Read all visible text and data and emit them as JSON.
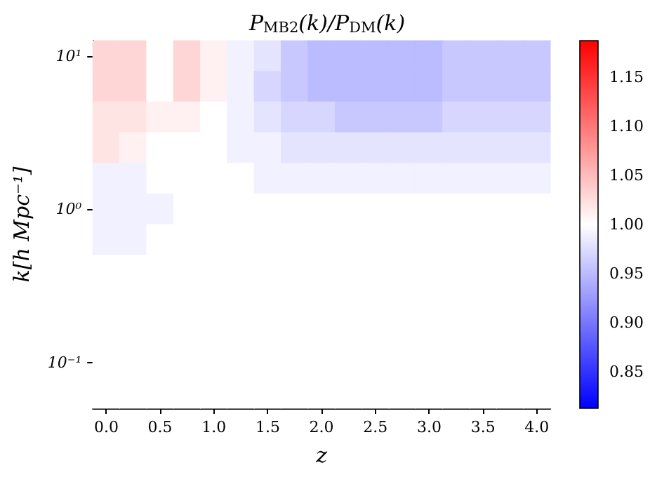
{
  "chart_data": {
    "type": "heatmap",
    "title": "P$_{MB2}$(k)/P$_{DM}$(k)",
    "xlabel": "z",
    "ylabel": "k[h Mpc⁻¹]",
    "categories": [
      "0.0",
      null,
      "0.5",
      null,
      "1.0",
      null,
      "1.5",
      null,
      "2.0",
      null,
      "2.5",
      null,
      "3.0",
      null,
      "3.5",
      null,
      "4.0"
    ],
    "y_categories": [
      "10¹",
      null,
      null,
      null,
      null,
      "10⁰",
      null,
      null,
      null,
      null,
      "10⁻¹",
      null
    ],
    "clim": [
      0.813,
      1.187
    ],
    "cticks": [
      0.85,
      {
        "value": 0.9,
        "label": "0.90"
      },
      0.95,
      {
        "value": 1.0,
        "label": "1.00"
      },
      1.05,
      {
        "value": 1.1,
        "label": "1.10"
      },
      1.15
    ],
    "cells": [
      [
        1.03,
        1.03,
        1.0,
        1.03,
        1.01,
        0.99,
        0.98,
        0.96,
        0.95,
        0.95,
        0.95,
        0.95,
        0.95,
        0.96,
        0.96,
        0.96,
        0.96
      ],
      [
        1.03,
        1.03,
        1.0,
        1.03,
        1.01,
        0.99,
        0.97,
        0.96,
        0.95,
        0.95,
        0.95,
        0.95,
        0.95,
        0.96,
        0.96,
        0.96,
        0.96
      ],
      [
        1.02,
        1.02,
        1.01,
        1.01,
        1.0,
        0.99,
        0.98,
        0.97,
        0.97,
        0.96,
        0.96,
        0.96,
        0.96,
        0.97,
        0.97,
        0.97,
        0.97
      ],
      [
        1.02,
        1.01,
        1.0,
        1.0,
        1.0,
        0.99,
        0.99,
        0.98,
        0.98,
        0.98,
        0.98,
        0.98,
        0.98,
        0.98,
        0.98,
        0.98,
        0.98
      ],
      [
        0.99,
        0.99,
        1.0,
        1.0,
        1.0,
        1.0,
        0.99,
        0.99,
        0.99,
        0.99,
        0.99,
        0.99,
        0.99,
        0.99,
        0.99,
        0.99,
        0.99
      ],
      [
        0.99,
        0.99,
        0.99,
        1.0,
        1.0,
        1.0,
        1.0,
        1.0,
        1.0,
        1.0,
        1.0,
        1.0,
        1.0,
        1.0,
        1.0,
        1.0,
        1.0
      ],
      [
        0.99,
        0.99,
        1.0,
        1.0,
        1.0,
        1.0,
        1.0,
        1.0,
        1.0,
        1.0,
        1.0,
        1.0,
        1.0,
        1.0,
        1.0,
        1.0,
        1.0
      ],
      [
        1.0,
        1.0,
        1.0,
        1.0,
        1.0,
        1.0,
        1.0,
        1.0,
        1.0,
        1.0,
        1.0,
        1.0,
        1.0,
        1.0,
        1.0,
        1.0,
        1.0
      ],
      [
        1.0,
        1.0,
        1.0,
        1.0,
        1.0,
        1.0,
        1.0,
        1.0,
        1.0,
        1.0,
        1.0,
        1.0,
        1.0,
        1.0,
        1.0,
        1.0,
        1.0
      ],
      [
        1.0,
        1.0,
        1.0,
        1.0,
        1.0,
        1.0,
        1.0,
        1.0,
        1.0,
        1.0,
        1.0,
        1.0,
        1.0,
        1.0,
        1.0,
        1.0,
        1.0
      ],
      [
        1.0,
        1.0,
        1.0,
        1.0,
        1.0,
        1.0,
        1.0,
        1.0,
        1.0,
        1.0,
        1.0,
        1.0,
        1.0,
        1.0,
        1.0,
        1.0,
        1.0
      ],
      [
        1.0,
        1.0,
        1.0,
        1.0,
        1.0,
        1.0,
        1.0,
        1.0,
        1.0,
        1.0,
        1.0,
        1.0,
        1.0,
        1.0,
        1.0,
        1.0,
        1.0
      ]
    ]
  }
}
